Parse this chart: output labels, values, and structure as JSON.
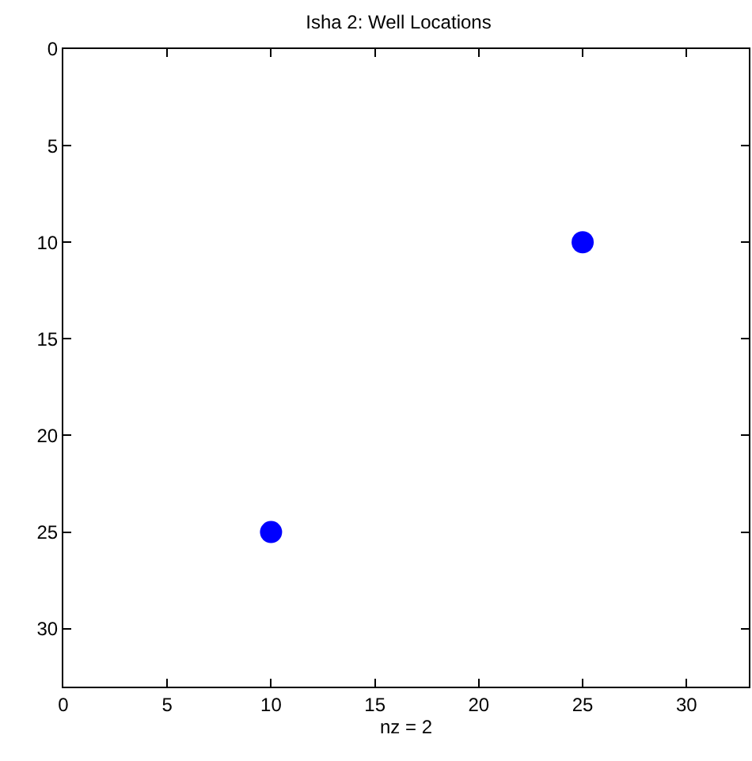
{
  "chart_data": {
    "type": "scatter",
    "title": "Isha 2: Well Locations",
    "xlabel": "nz = 2",
    "x": [
      10,
      25
    ],
    "series": [
      {
        "color": "#0000ff",
        "values": [
          25,
          10
        ]
      }
    ],
    "xlim": [
      0,
      33
    ],
    "ylim": [
      33,
      0
    ],
    "xticks": [
      0,
      5,
      10,
      15,
      20,
      25,
      30
    ],
    "yticks": [
      0,
      5,
      10,
      15,
      20,
      25,
      30
    ],
    "marker": "circle"
  }
}
